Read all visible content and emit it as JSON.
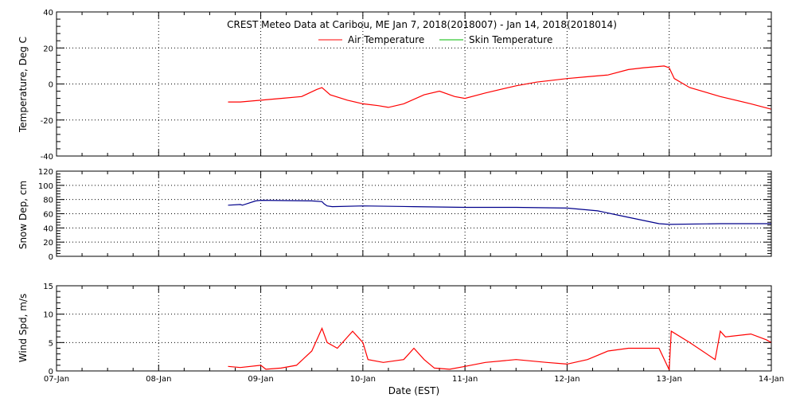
{
  "chart_data": [
    {
      "type": "line",
      "title": "CREST Meteo Data at Caribou, ME   Jan  7, 2018(2018007) - Jan 14, 2018(2018014)",
      "ylabel": "Temperature, Deg C",
      "ylim": [
        -40,
        40
      ],
      "yticks": [
        -40,
        -20,
        0,
        20,
        40
      ],
      "xlim": [
        0,
        7
      ],
      "grid": true,
      "legend": "top-center",
      "series": [
        {
          "name": "Air Temperature",
          "color": "#ff0000",
          "x": [
            1.68,
            1.8,
            2.0,
            2.2,
            2.4,
            2.55,
            2.6,
            2.68,
            2.85,
            3.0,
            3.15,
            3.25,
            3.4,
            3.6,
            3.75,
            3.9,
            4.0,
            4.2,
            4.5,
            4.7,
            5.0,
            5.2,
            5.4,
            5.6,
            5.75,
            5.95,
            6.0,
            6.05,
            6.2,
            6.5,
            6.8,
            7.0
          ],
          "values": [
            -10,
            -10,
            -9,
            -8,
            -7,
            -3,
            -2,
            -6,
            -9,
            -11,
            -12,
            -13,
            -11,
            -6,
            -4,
            -7,
            -8,
            -5,
            -1,
            1,
            3,
            4,
            5,
            8,
            9,
            10,
            9,
            3,
            -2,
            -7,
            -11,
            -14
          ]
        },
        {
          "name": "Skin Temperature",
          "color": "#00bb00",
          "x": [],
          "values": []
        }
      ]
    },
    {
      "type": "line",
      "ylabel": "Snow Dep, cm",
      "ylim": [
        0,
        120
      ],
      "yticks": [
        0,
        20,
        40,
        60,
        80,
        100,
        120
      ],
      "xlim": [
        0,
        7
      ],
      "grid": true,
      "series": [
        {
          "color": "#00008b",
          "x": [
            1.68,
            1.8,
            1.82,
            1.95,
            2.0,
            2.5,
            2.6,
            2.62,
            2.65,
            2.7,
            3.0,
            3.5,
            4.0,
            4.5,
            5.0,
            5.3,
            5.6,
            5.9,
            6.0,
            6.5,
            7.0
          ],
          "values": [
            72,
            73,
            72,
            78,
            79,
            78,
            77,
            74,
            71,
            70,
            71,
            70,
            69,
            69,
            68,
            64,
            55,
            46,
            45,
            46,
            46
          ]
        }
      ]
    },
    {
      "type": "line",
      "ylabel": "Wind Spd, m/s",
      "xlabel": "Date (EST)",
      "ylim": [
        0,
        15
      ],
      "yticks": [
        0,
        5,
        10,
        15
      ],
      "xlim": [
        0,
        7
      ],
      "xticks": [
        "07-Jan",
        "08-Jan",
        "09-Jan",
        "10-Jan",
        "11-Jan",
        "12-Jan",
        "13-Jan",
        "14-Jan"
      ],
      "grid": true,
      "series": [
        {
          "color": "#ff0000",
          "x": [
            1.68,
            1.8,
            2.0,
            2.05,
            2.2,
            2.35,
            2.5,
            2.6,
            2.65,
            2.75,
            2.9,
            3.0,
            3.05,
            3.2,
            3.4,
            3.5,
            3.6,
            3.7,
            3.85,
            4.0,
            4.2,
            4.5,
            4.8,
            5.0,
            5.2,
            5.4,
            5.6,
            5.9,
            6.0,
            6.02,
            6.2,
            6.45,
            6.5,
            6.55,
            6.8,
            6.95,
            7.0
          ],
          "values": [
            0.8,
            0.6,
            1.0,
            0.3,
            0.5,
            1.0,
            3.5,
            7.5,
            5.0,
            4.0,
            7.0,
            5.0,
            2.0,
            1.5,
            2.0,
            4.0,
            2.0,
            0.5,
            0.3,
            0.8,
            1.5,
            2.0,
            1.5,
            1.2,
            2.0,
            3.5,
            4.0,
            4.0,
            0.2,
            7.0,
            5.0,
            2.0,
            7.0,
            6.0,
            6.5,
            5.5,
            5.0
          ]
        }
      ]
    }
  ]
}
